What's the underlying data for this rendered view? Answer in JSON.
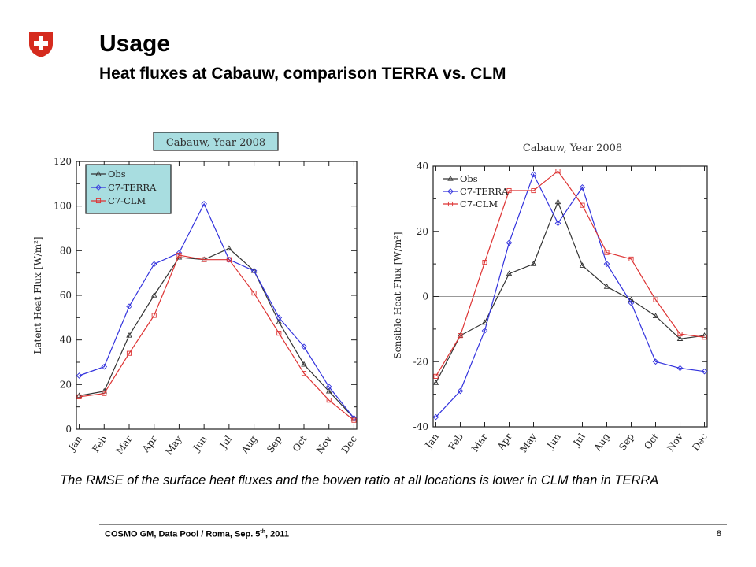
{
  "slide": {
    "title": "Usage",
    "subtitle": "Heat fluxes at Cabauw, comparison TERRA vs. CLM",
    "caption": "The RMSE of the surface heat fluxes and the bowen ratio at all locations is lower in CLM than in TERRA",
    "footer": {
      "text_before": "COSMO GM, Data Pool / Roma, Sep. 5",
      "superscript": "th",
      "text_after": ", 2011",
      "page_number": "8"
    },
    "colors": {
      "obs": "#333333",
      "terra": "#3333dd",
      "clm": "#dd3333",
      "logo_red": "#d52b1e",
      "legend_bg": "#a8dde0"
    }
  },
  "chart_data": [
    {
      "type": "line",
      "title": "Cabauw, Year 2008",
      "title_boxed": true,
      "xlabel": "",
      "ylabel": "Latent Heat Flux [W/m²]",
      "categories": [
        "Jan",
        "Feb",
        "Mar",
        "Apr",
        "May",
        "Jun",
        "Jul",
        "Aug",
        "Sep",
        "Oct",
        "Nov",
        "Dec"
      ],
      "ylim": [
        0,
        120
      ],
      "yticks": [
        0,
        20,
        40,
        60,
        80,
        100,
        120
      ],
      "legend_position": "top-left",
      "series": [
        {
          "name": "Obs",
          "marker": "triangle",
          "color": "#333333",
          "values": [
            15,
            17,
            42,
            60,
            77,
            76,
            81,
            71,
            48,
            29,
            17,
            5
          ]
        },
        {
          "name": "C7-TERRA",
          "marker": "diamond",
          "color": "#3333dd",
          "values": [
            24,
            28,
            55,
            74,
            79,
            101,
            76,
            71,
            50,
            37,
            19,
            5
          ]
        },
        {
          "name": "C7-CLM",
          "marker": "square",
          "color": "#dd3333",
          "values": [
            14.5,
            16,
            34,
            51,
            78,
            76,
            76,
            61,
            43,
            25,
            13,
            4
          ]
        }
      ]
    },
    {
      "type": "line",
      "title": "Cabauw, Year 2008",
      "title_boxed": false,
      "xlabel": "",
      "ylabel": "Sensible Heat Flux [W/m²]",
      "categories": [
        "Jan",
        "Feb",
        "Mar",
        "Apr",
        "May",
        "Jun",
        "Jul",
        "Aug",
        "Sep",
        "Oct",
        "Nov",
        "Dec"
      ],
      "ylim": [
        -40,
        40
      ],
      "yticks": [
        -40,
        -20,
        0,
        20,
        40
      ],
      "zero_line": true,
      "legend_position": "top-left",
      "series": [
        {
          "name": "Obs",
          "marker": "triangle",
          "color": "#333333",
          "values": [
            -26.5,
            -12,
            -8,
            7,
            10,
            29,
            9.5,
            3,
            -1,
            -6,
            -13,
            -12
          ]
        },
        {
          "name": "C7-TERRA",
          "marker": "diamond",
          "color": "#3333dd",
          "values": [
            -37,
            -29,
            -10.5,
            16.5,
            37.5,
            22.5,
            33.5,
            10,
            -2,
            -20,
            -22,
            -23
          ]
        },
        {
          "name": "C7-CLM",
          "marker": "square",
          "color": "#dd3333",
          "values": [
            -24.5,
            -12,
            10.5,
            32.5,
            32.5,
            38.5,
            28,
            13.5,
            11.5,
            -1,
            -11.5,
            -12.5
          ]
        }
      ]
    }
  ]
}
